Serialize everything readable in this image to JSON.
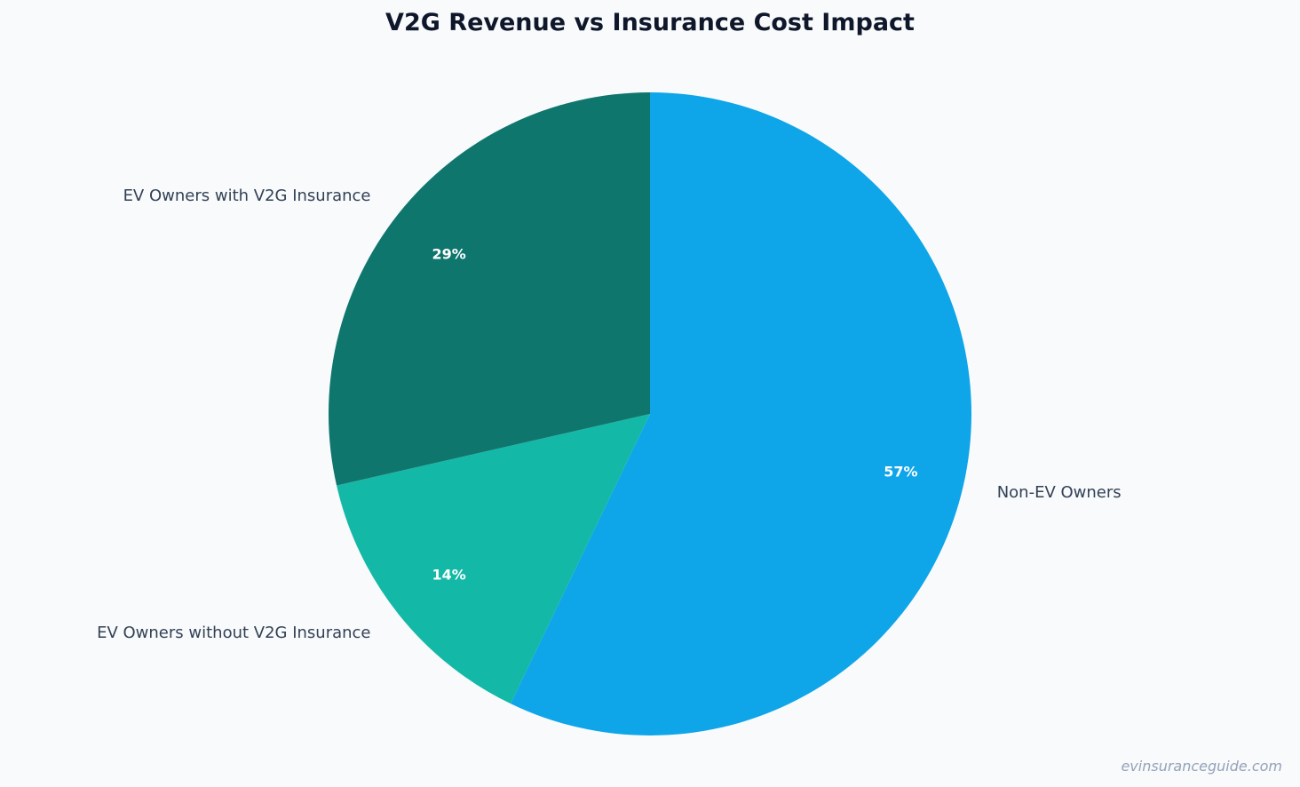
{
  "chart_data": {
    "type": "pie",
    "title": "V2G Revenue vs Insurance Cost Impact",
    "start_angle": "top, clockwise",
    "slices": [
      {
        "label": "Non-EV Owners",
        "value": 57.14,
        "display": "57%",
        "color": "#0ea5e9"
      },
      {
        "label": "EV Owners without V2G Insurance",
        "value": 14.29,
        "display": "14%",
        "color": "#14b8a6"
      },
      {
        "label": "EV Owners with V2G Insurance",
        "value": 28.57,
        "display": "29%",
        "color": "#0f766e"
      }
    ]
  },
  "watermark": "evinsuranceguide.com"
}
